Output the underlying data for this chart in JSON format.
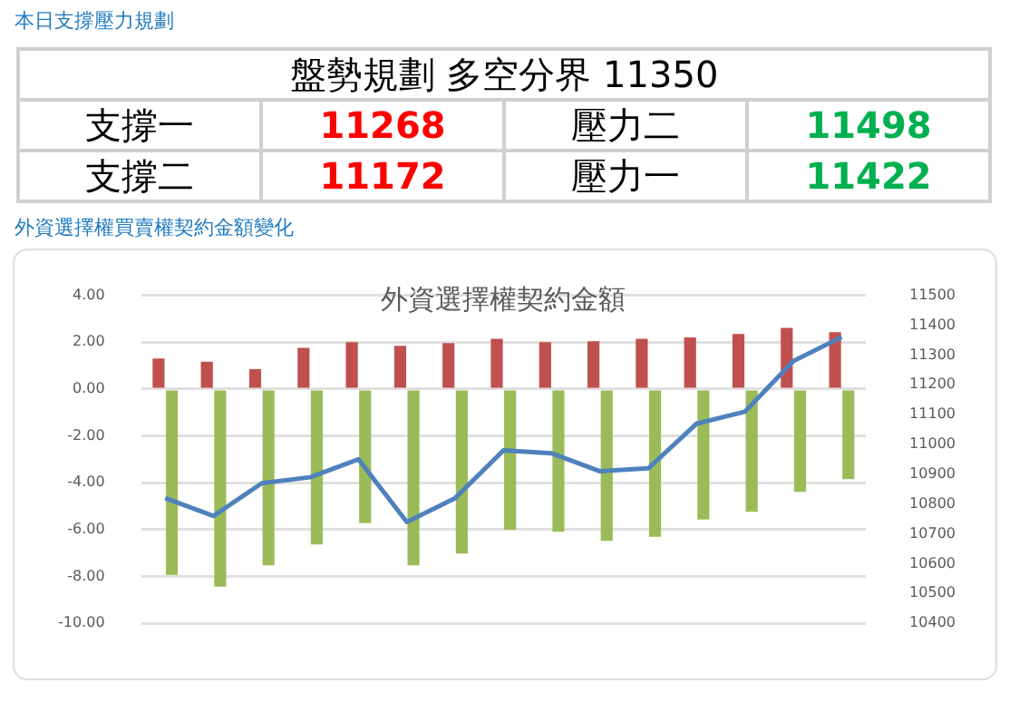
{
  "chart_data": [
    {
      "type": "other",
      "title": "本日支撐壓力規劃",
      "annotations": [
        "盤勢規劃 多空分界 11350",
        "支撐一",
        "11268",
        "壓力二",
        "11498",
        "支撐二",
        "11172",
        "壓力一",
        "11422"
      ],
      "colors": [
        "#000000",
        "#000000",
        "#ff0000",
        "#000000",
        "#00b050",
        "#000000",
        "#ff0000",
        "#000000",
        "#00b050"
      ]
    },
    {
      "type": "bar",
      "subtitle": "外資選擇權買賣權契約金額變化",
      "title": "外資選擇權契約金額",
      "categories": [
        null,
        null,
        null,
        null,
        null,
        null,
        null,
        null,
        null,
        null,
        null,
        null,
        null,
        null,
        null
      ],
      "series": [
        {
          "type": "bar",
          "color": "#c0504d",
          "values": [
            1.3,
            1.17,
            0.85,
            1.76,
            2.0,
            1.85,
            1.96,
            2.15,
            2.0,
            2.04,
            2.15,
            2.2,
            2.35,
            2.61,
            2.43
          ]
        },
        {
          "type": "bar",
          "color": "#9bbb59",
          "values": [
            -7.93,
            -8.43,
            -7.52,
            -6.63,
            -5.72,
            -7.52,
            -7.02,
            -6.0,
            -6.09,
            -6.48,
            -6.3,
            -5.57,
            -5.24,
            -4.39,
            -3.85
          ]
        },
        {
          "type": "line",
          "axis": "y2",
          "color": "#4f81bd",
          "values": [
            10820,
            10760,
            10870,
            10890,
            10950,
            10740,
            10820,
            10980,
            10970,
            10910,
            10920,
            11070,
            11110,
            11280,
            11360
          ]
        }
      ],
      "ylim": [
        -10,
        4
      ],
      "yticks": [
        {
          "value": -10,
          "label": "-10.00"
        },
        {
          "value": -8,
          "label": "-8.00"
        },
        {
          "value": -6,
          "label": "-6.00"
        },
        {
          "value": -4,
          "label": "-4.00"
        },
        {
          "value": -2,
          "label": "-2.00"
        },
        {
          "value": 0,
          "label": "0.00"
        },
        {
          "value": 2,
          "label": "2.00"
        },
        {
          "value": 4,
          "label": "4.00"
        }
      ],
      "y2lim": [
        10400,
        11500
      ],
      "y2ticks": [
        10400,
        10500,
        10600,
        10700,
        10800,
        10900,
        11000,
        11100,
        11200,
        11300,
        11400,
        11500
      ],
      "grid": "y",
      "legend": false,
      "marker": "none",
      "line_style": "solid"
    }
  ]
}
